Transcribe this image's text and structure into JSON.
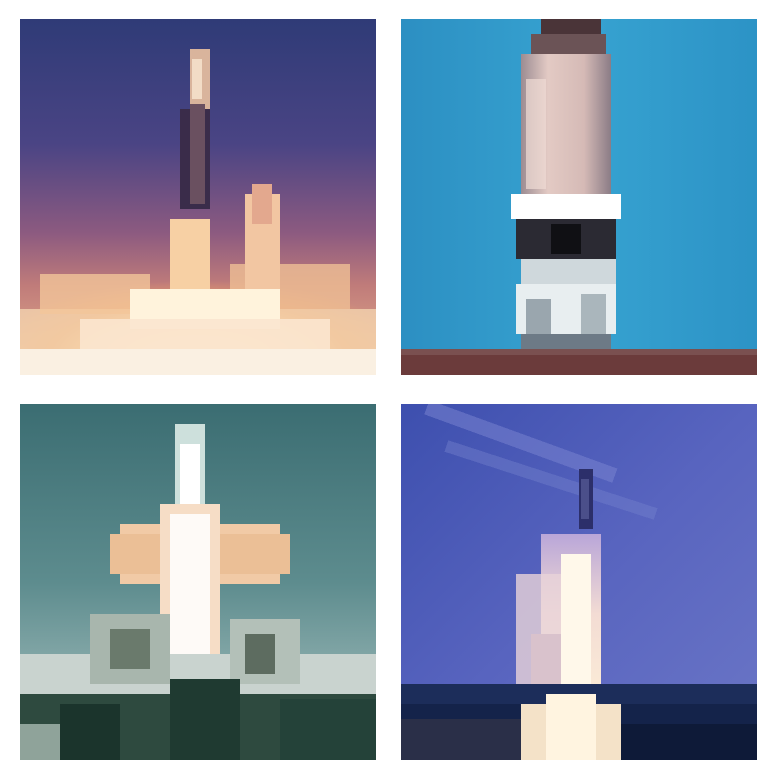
{
  "tiles": [
    {
      "subject": "rocket-launch-dusk",
      "palette": {
        "sky_top": "#2e3d78",
        "sky_mid": "#5a4a86",
        "horizon": "#b06a78",
        "exhaust": "#ffd9a0",
        "rocket": "#d8b49a"
      }
    },
    {
      "subject": "rocket-on-pad-blue-sky",
      "palette": {
        "sky": "#2f9ccd",
        "rocket": "#d9c0bc",
        "band": "#ffffff",
        "ground": "#6b3b3b"
      }
    },
    {
      "subject": "shuttle-launch-teal-sky",
      "palette": {
        "sky_top": "#3a6f73",
        "sky_bottom": "#9bb9b9",
        "exhaust": "#f2d2b0",
        "smoke": "#d6dbd6",
        "trees": "#1e3b33"
      }
    },
    {
      "subject": "rocket-launch-night-sea",
      "palette": {
        "sky_top": "#4b57b8",
        "sky_bottom": "#6f79c8",
        "sea": "#1a2b55",
        "exhaust": "#fff0d2"
      }
    }
  ]
}
